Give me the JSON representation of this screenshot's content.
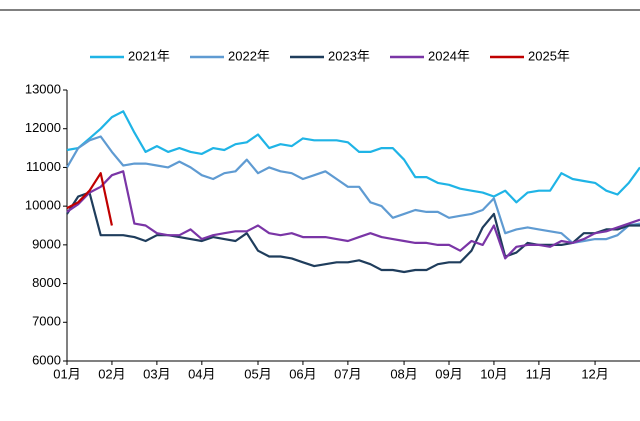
{
  "chart_data": {
    "type": "line",
    "categories": [
      "01月",
      null,
      null,
      null,
      "02月",
      null,
      null,
      null,
      "03月",
      null,
      null,
      null,
      "04月",
      null,
      null,
      null,
      null,
      "05月",
      null,
      null,
      null,
      "06月",
      null,
      null,
      null,
      "07月",
      null,
      null,
      null,
      null,
      "08月",
      null,
      null,
      null,
      "09月",
      null,
      null,
      null,
      "10月",
      null,
      null,
      null,
      "11月",
      null,
      null,
      null,
      null,
      "12月",
      null,
      null,
      null,
      null
    ],
    "series": [
      {
        "name": "2021年",
        "color": "#1fb4e6",
        "values": [
          11450,
          11500,
          11750,
          12000,
          12300,
          12450,
          11900,
          11400,
          11550,
          11400,
          11500,
          11400,
          11350,
          11500,
          11450,
          11600,
          11650,
          11850,
          11500,
          11600,
          11550,
          11750,
          11700,
          11700,
          11700,
          11650,
          11400,
          11400,
          11500,
          11500,
          11200,
          10750,
          10750,
          10600,
          10550,
          10450,
          10400,
          10350,
          10250,
          10400,
          10100,
          10350,
          10400,
          10400,
          10850,
          10700,
          10650,
          10600,
          10400,
          10300,
          10600,
          11000
        ]
      },
      {
        "name": "2022年",
        "color": "#5f9bd2",
        "values": [
          11000,
          11500,
          11700,
          11800,
          11400,
          11050,
          11100,
          11100,
          11050,
          11000,
          11150,
          11000,
          10800,
          10700,
          10850,
          10900,
          11200,
          10850,
          11000,
          10900,
          10850,
          10700,
          10800,
          10900,
          10700,
          10500,
          10500,
          10100,
          10000,
          9700,
          9800,
          9900,
          9850,
          9850,
          9700,
          9750,
          9800,
          9900,
          10200,
          9300,
          9400,
          9450,
          9400,
          9350,
          9300,
          9050,
          9100,
          9150,
          9150,
          9250,
          9500,
          9550
        ]
      },
      {
        "name": "2023年",
        "color": "#1f3d5c",
        "values": [
          9800,
          10250,
          10350,
          9250,
          9250,
          9250,
          9200,
          9100,
          9250,
          9250,
          9200,
          9150,
          9100,
          9200,
          9150,
          9100,
          9300,
          8850,
          8700,
          8700,
          8650,
          8550,
          8450,
          8500,
          8550,
          8550,
          8600,
          8500,
          8350,
          8350,
          8300,
          8350,
          8350,
          8500,
          8550,
          8550,
          8850,
          9450,
          9800,
          8700,
          8800,
          9050,
          9000,
          9000,
          9000,
          9050,
          9300,
          9300,
          9400,
          9400,
          9500,
          9500
        ]
      },
      {
        "name": "2024年",
        "color": "#7a35a6",
        "values": [
          9850,
          10050,
          10350,
          10500,
          10800,
          10900,
          9550,
          9500,
          9300,
          9250,
          9250,
          9400,
          9150,
          9250,
          9300,
          9350,
          9350,
          9500,
          9300,
          9250,
          9300,
          9200,
          9200,
          9200,
          9150,
          9100,
          9200,
          9300,
          9200,
          9150,
          9100,
          9050,
          9050,
          9000,
          9000,
          8850,
          9100,
          9000,
          9500,
          8650,
          8950,
          9000,
          9000,
          8950,
          9100,
          9050,
          9150,
          9300,
          9350,
          9450,
          9550,
          9650
        ]
      },
      {
        "name": "2025年",
        "color": "#c00000",
        "values": [
          9950,
          10100,
          10400,
          10850,
          9500,
          null,
          null,
          null,
          null,
          null,
          null,
          null,
          null,
          null,
          null,
          null,
          null,
          null,
          null,
          null,
          null,
          null,
          null,
          null,
          null,
          null,
          null,
          null,
          null,
          null,
          null,
          null,
          null,
          null,
          null,
          null,
          null,
          null,
          null,
          null,
          null,
          null,
          null,
          null,
          null,
          null,
          null,
          null,
          null,
          null,
          null,
          null
        ]
      }
    ],
    "ylim": [
      6000,
      13000
    ],
    "yticks": [
      6000,
      7000,
      8000,
      9000,
      10000,
      11000,
      12000,
      13000
    ],
    "grid": false,
    "legend": "top"
  }
}
